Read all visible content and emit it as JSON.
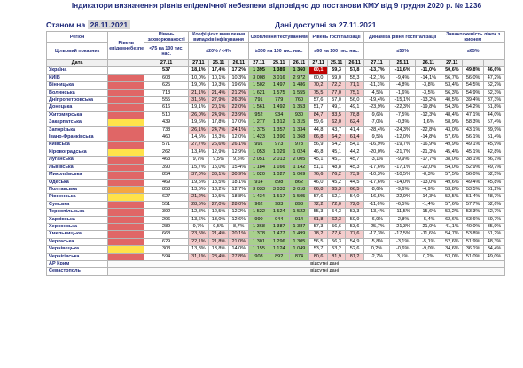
{
  "title_lines": [
    "Індикатори визначення рівнів епідемічної небезпеки відповідно до постанови КМУ від 9 грудня 2020 р. № 1236"
  ],
  "status_label": "Станом на",
  "status_date": "28.11.2021",
  "data_note": "Дані доступні за 27.11.2021",
  "headers": {
    "region": "Регіон",
    "target": "Цільовий показник",
    "date_label": "Дата",
    "level": "Рівень епідемнебезпеки",
    "incidence": "Рівень захворюваності",
    "incidence_target": "<75 на 100 тис. нас.",
    "detect": "Коефіцієнт виявлення випадків інфікування",
    "detect_target": "≤20% / <4%",
    "tests": "Охоплення тестуванням",
    "tests_target": "≥300 на 100 тис. нас.",
    "hosp": "Рівень госпіталізації",
    "hosp_target": "≤60 на 100 тис. нас.",
    "dyn": "Динаміка рівня госпіталізації",
    "dyn_target": "≤50%",
    "beds": "Завантаженість ліжок з киснем",
    "beds_target": "≤65%",
    "dates": [
      "27.11",
      "27.11",
      "25.11",
      "26.11",
      "27.11",
      "25.11",
      "26.11",
      "27.11",
      "25.11",
      "26.11",
      "27.11",
      "25.11",
      "26.11",
      "27.11"
    ]
  },
  "no_data_text": "відсутні дані",
  "colors": {
    "red": "#e06666",
    "yellow": "#ffe24a",
    "orange": "#f4a742"
  },
  "rows": [
    {
      "name": "Україна",
      "level": "",
      "inc": "537",
      "d": [
        "18,1%",
        "17,4%",
        "17,2%"
      ],
      "t": [
        "1 395",
        "1 389",
        "1 360"
      ],
      "h": [
        "60,1",
        "59,3",
        "57,8"
      ],
      "g": [
        "-13,7%",
        "-11,6%",
        "-11,0%"
      ],
      "b": [
        "50,6%",
        "49,8%",
        "46,6%"
      ]
    },
    {
      "name": "КИЇВ",
      "level": "red",
      "inc": "603",
      "d": [
        "10,0%",
        "10,1%",
        "10,3%"
      ],
      "t": [
        "3 008",
        "3 016",
        "2 972"
      ],
      "h": [
        "60,0",
        "59,0",
        "55,3"
      ],
      "g": [
        "-12,1%",
        "-9,4%",
        "-14,1%"
      ],
      "b": [
        "56,7%",
        "56,0%",
        "47,2%"
      ]
    },
    {
      "name": "Вінницька",
      "level": "red",
      "inc": "625",
      "d": [
        "19,0%",
        "19,3%",
        "19,6%"
      ],
      "t": [
        "1 502",
        "1 497",
        "1 486"
      ],
      "h": [
        "70,2",
        "72,2",
        "71,1"
      ],
      "g": [
        "-11,3%",
        "-4,8%",
        "-3,8%"
      ],
      "b": [
        "53,4%",
        "54,5%",
        "52,2%"
      ]
    },
    {
      "name": "Волинська",
      "level": "red",
      "inc": "713",
      "d": [
        "21,1%",
        "21,4%",
        "21,2%"
      ],
      "t": [
        "1 621",
        "1 575",
        "1 555"
      ],
      "h": [
        "75,5",
        "77,0",
        "75,1"
      ],
      "g": [
        "-4,5%",
        "-1,6%",
        "-3,5%"
      ],
      "b": [
        "56,3%",
        "54,9%",
        "52,3%"
      ]
    },
    {
      "name": "Дніпропетровська",
      "level": "red",
      "inc": "555",
      "d": [
        "31,5%",
        "27,9%",
        "26,3%"
      ],
      "t": [
        "791",
        "779",
        "760"
      ],
      "h": [
        "57,6",
        "57,0",
        "56,0"
      ],
      "g": [
        "-19,4%",
        "-15,1%",
        "-13,2%"
      ],
      "b": [
        "40,5%",
        "39,4%",
        "37,3%"
      ]
    },
    {
      "name": "Донецька",
      "level": "red",
      "inc": "616",
      "d": [
        "19,1%",
        "20,1%",
        "22,0%"
      ],
      "t": [
        "1 561",
        "1 492",
        "1 353"
      ],
      "h": [
        "51,7",
        "49,1",
        "49,1"
      ],
      "g": [
        "-23,9%",
        "-22,3%",
        "-19,8%"
      ],
      "b": [
        "54,3%",
        "54,2%",
        "51,8%"
      ]
    },
    {
      "name": "Житомирська",
      "level": "red",
      "inc": "510",
      "d": [
        "26,0%",
        "24,9%",
        "23,9%"
      ],
      "t": [
        "952",
        "934",
        "930"
      ],
      "h": [
        "84,7",
        "83,5",
        "78,8"
      ],
      "g": [
        "-9,6%",
        "-7,5%",
        "-12,3%"
      ],
      "b": [
        "48,4%",
        "47,1%",
        "44,0%"
      ]
    },
    {
      "name": "Закарпатська",
      "level": "yel",
      "inc": "439",
      "d": [
        "19,6%",
        "17,8%",
        "17,0%"
      ],
      "t": [
        "1 277",
        "1 312",
        "1 315"
      ],
      "h": [
        "59,6",
        "62,0",
        "62,4"
      ],
      "g": [
        "-7,0%",
        "-0,3%",
        "1,6%"
      ],
      "b": [
        "58,9%",
        "58,3%",
        "57,4%"
      ]
    },
    {
      "name": "Запорізька",
      "level": "red",
      "inc": "738",
      "d": [
        "26,1%",
        "24,7%",
        "24,1%"
      ],
      "t": [
        "1 375",
        "1 357",
        "1 334"
      ],
      "h": [
        "44,8",
        "43,7",
        "41,4"
      ],
      "g": [
        "-28,4%",
        "-24,3%",
        "-22,8%"
      ],
      "b": [
        "43,0%",
        "43,1%",
        "39,9%"
      ]
    },
    {
      "name": "Івано-Франківська",
      "level": "red",
      "inc": "460",
      "d": [
        "14,5%",
        "13,3%",
        "12,0%"
      ],
      "t": [
        "1 423",
        "1 390",
        "1 368"
      ],
      "h": [
        "66,8",
        "64,2",
        "61,4"
      ],
      "g": [
        "-9,5%",
        "-12,0%",
        "-14,8%"
      ],
      "b": [
        "57,6%",
        "56,1%",
        "51,4%"
      ]
    },
    {
      "name": "Київська",
      "level": "red",
      "inc": "571",
      "d": [
        "27,7%",
        "26,6%",
        "26,1%"
      ],
      "t": [
        "991",
        "973",
        "973"
      ],
      "h": [
        "56,9",
        "54,2",
        "54,1"
      ],
      "g": [
        "-16,9%",
        "-19,7%",
        "-16,9%"
      ],
      "b": [
        "49,9%",
        "49,1%",
        "45,9%"
      ]
    },
    {
      "name": "Кіровоградська",
      "level": "yel",
      "inc": "262",
      "d": [
        "13,4%",
        "12,9%",
        "12,9%"
      ],
      "t": [
        "1 053",
        "1 029",
        "1 024"
      ],
      "h": [
        "46,8",
        "45,1",
        "44,2"
      ],
      "g": [
        "-20,0%",
        "-21,7%",
        "-21,3%"
      ],
      "b": [
        "45,4%",
        "45,1%",
        "42,8%"
      ]
    },
    {
      "name": "Луганська",
      "level": "red",
      "inc": "463",
      "d": [
        "9,7%",
        "9,5%",
        "9,5%"
      ],
      "t": [
        "2 051",
        "2 013",
        "2 005"
      ],
      "h": [
        "45,1",
        "45,1",
        "45,7"
      ],
      "g": [
        "-3,1%",
        "-9,9%",
        "-17,7%"
      ],
      "b": [
        "38,0%",
        "38,1%",
        "36,1%"
      ]
    },
    {
      "name": "Львівська",
      "level": "red",
      "inc": "390",
      "d": [
        "15,7%",
        "15,0%",
        "15,4%"
      ],
      "t": [
        "1 184",
        "1 166",
        "1 142"
      ],
      "h": [
        "51,1",
        "48,8",
        "45,3"
      ],
      "g": [
        "-17,6%",
        "-17,1%",
        "-22,0%"
      ],
      "b": [
        "54,0%",
        "52,9%",
        "49,7%"
      ]
    },
    {
      "name": "Миколаївська",
      "level": "red",
      "inc": "854",
      "d": [
        "37,0%",
        "33,1%",
        "30,9%"
      ],
      "t": [
        "1 020",
        "1 027",
        "1 009"
      ],
      "h": [
        "76,6",
        "76,2",
        "73,9"
      ],
      "g": [
        "-10,3%",
        "-10,5%",
        "-8,3%"
      ],
      "b": [
        "57,5%",
        "56,0%",
        "52,5%"
      ]
    },
    {
      "name": "Одеська",
      "level": "red",
      "inc": "469",
      "d": [
        "19,5%",
        "18,5%",
        "18,1%"
      ],
      "t": [
        "914",
        "898",
        "862"
      ],
      "h": [
        "46,0",
        "45,2",
        "44,5"
      ],
      "g": [
        "-17,6%",
        "-14,0%",
        "-13,0%"
      ],
      "b": [
        "49,6%",
        "49,4%",
        "45,8%"
      ]
    },
    {
      "name": "Полтавська",
      "level": "ora",
      "inc": "853",
      "d": [
        "13,6%",
        "13,2%",
        "12,7%"
      ],
      "t": [
        "3 033",
        "3 033",
        "3 018"
      ],
      "h": [
        "66,8",
        "65,3",
        "66,5"
      ],
      "g": [
        "-8,6%",
        "-9,6%",
        "-4,9%"
      ],
      "b": [
        "53,8%",
        "53,5%",
        "51,2%"
      ]
    },
    {
      "name": "Рівненська",
      "level": "yel",
      "inc": "627",
      "d": [
        "21,2%",
        "19,5%",
        "18,8%"
      ],
      "t": [
        "1 434",
        "1 517",
        "1 505"
      ],
      "h": [
        "57,6",
        "52,1",
        "54,0"
      ],
      "g": [
        "-16,5%",
        "-22,9%",
        "-14,3%"
      ],
      "b": [
        "52,5%",
        "51,4%",
        "48,7%"
      ]
    },
    {
      "name": "Сумська",
      "level": "red",
      "inc": "551",
      "d": [
        "28,5%",
        "27,0%",
        "28,0%"
      ],
      "t": [
        "962",
        "983",
        "893"
      ],
      "h": [
        "72,2",
        "72,0",
        "72,0"
      ],
      "g": [
        "-11,6%",
        "-6,5%",
        "-1,4%"
      ],
      "b": [
        "57,6%",
        "57,7%",
        "52,6%"
      ]
    },
    {
      "name": "Тернопільська",
      "level": "red",
      "inc": "392",
      "d": [
        "12,8%",
        "12,5%",
        "12,2%"
      ],
      "t": [
        "1 522",
        "1 524",
        "1 522"
      ],
      "h": [
        "55,3",
        "54,3",
        "53,3"
      ],
      "g": [
        "-13,4%",
        "-11,5%",
        "-15,6%"
      ],
      "b": [
        "53,2%",
        "53,3%",
        "52,7%"
      ]
    },
    {
      "name": "Харківська",
      "level": "red",
      "inc": "296",
      "d": [
        "13,6%",
        "13,0%",
        "12,6%"
      ],
      "t": [
        "990",
        "944",
        "914"
      ],
      "h": [
        "61,8",
        "62,3",
        "59,9"
      ],
      "g": [
        "-6,9%",
        "-2,8%",
        "-5,4%"
      ],
      "b": [
        "62,6%",
        "63,6%",
        "59,7%"
      ]
    },
    {
      "name": "Херсонська",
      "level": "red",
      "inc": "289",
      "d": [
        "9,7%",
        "9,5%",
        "8,7%"
      ],
      "t": [
        "1 368",
        "1 387",
        "1 387"
      ],
      "h": [
        "57,3",
        "56,6",
        "53,6"
      ],
      "g": [
        "-25,7%",
        "-21,3%",
        "-21,0%"
      ],
      "b": [
        "41,1%",
        "40,0%",
        "35,9%"
      ]
    },
    {
      "name": "Хмельницька",
      "level": "red",
      "inc": "668",
      "d": [
        "23,5%",
        "21,4%",
        "20,1%"
      ],
      "t": [
        "1 378",
        "1 477",
        "1 499"
      ],
      "h": [
        "78,2",
        "77,6",
        "77,6"
      ],
      "g": [
        "-17,3%",
        "-17,5%",
        "-11,6%"
      ],
      "b": [
        "54,7%",
        "53,8%",
        "51,2%"
      ]
    },
    {
      "name": "Черкаська",
      "level": "red",
      "inc": "629",
      "d": [
        "22,1%",
        "21,8%",
        "21,0%"
      ],
      "t": [
        "1 301",
        "1 296",
        "1 305"
      ],
      "h": [
        "56,5",
        "56,3",
        "54,9"
      ],
      "g": [
        "-5,8%",
        "-3,1%",
        "-5,1%"
      ],
      "b": [
        "52,6%",
        "51,9%",
        "48,3%"
      ]
    },
    {
      "name": "Чернівецька",
      "level": "yel",
      "inc": "303",
      "d": [
        "13,8%",
        "13,8%",
        "14,0%"
      ],
      "t": [
        "1 155",
        "1 124",
        "1 049"
      ],
      "h": [
        "53,7",
        "53,2",
        "52,6"
      ],
      "g": [
        "0,2%",
        "-0,6%",
        "-9,0%"
      ],
      "b": [
        "34,6%",
        "36,1%",
        "34,4%"
      ]
    },
    {
      "name": "Чернігівська",
      "level": "red",
      "inc": "594",
      "d": [
        "31,1%",
        "28,4%",
        "27,8%"
      ],
      "t": [
        "908",
        "892",
        "874"
      ],
      "h": [
        "80,6",
        "81,9",
        "81,2"
      ],
      "g": [
        "-2,7%",
        "3,1%",
        "0,2%"
      ],
      "b": [
        "53,0%",
        "51,0%",
        "49,0%"
      ]
    }
  ],
  "nodata_rows": [
    "АР Крим",
    "Севастополь"
  ]
}
